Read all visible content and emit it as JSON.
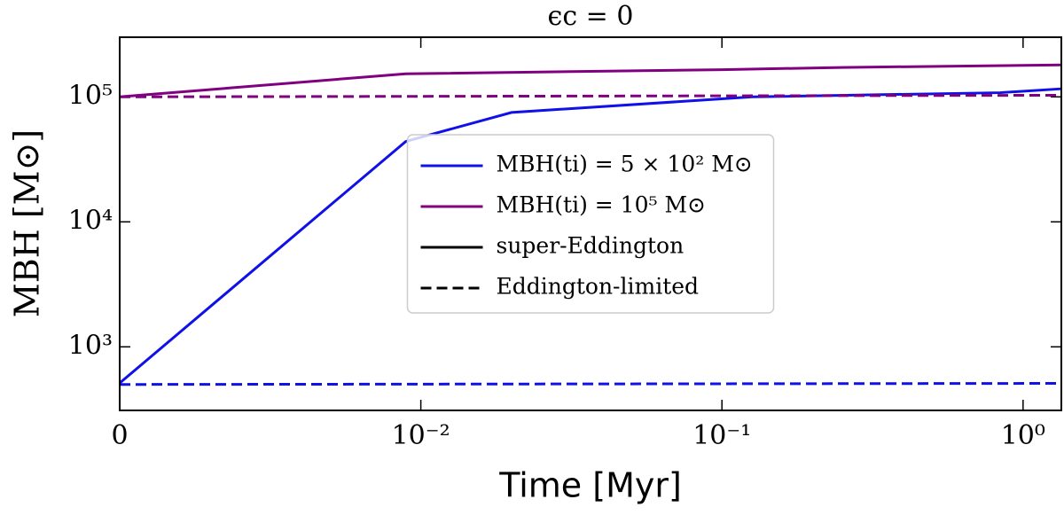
{
  "chart_data": {
    "type": "line",
    "title": "ϵc = 0",
    "x_label": "Time [Myr]",
    "y_label": "MBH [M⊙]",
    "xscale": "symlog",
    "linthresh": 0.01,
    "yscale": "log",
    "xlim": [
      0,
      1.34
    ],
    "ylim": [
      310,
      300000
    ],
    "xticks": [
      0,
      {
        "value": 0.01,
        "label": "10⁻²"
      },
      {
        "value": 0.1,
        "label": "10⁻¹"
      },
      {
        "value": 1,
        "label": "10⁰"
      }
    ],
    "yticks": [
      {
        "value": 1000,
        "label": "10³"
      },
      {
        "value": 10000,
        "label": "10⁴"
      },
      {
        "value": 100000,
        "label": "10⁵"
      }
    ],
    "legend": "center",
    "series": [
      {
        "name": "MBH(ti) = 5 × 10² M⊙",
        "color": "#1010e8",
        "dash": "solid",
        "x": [
          0,
          0.0095,
          0.02,
          0.126,
          0.84,
          1.34
        ],
        "values": [
          513,
          44000,
          75000,
          100000,
          108000,
          116000
        ]
      },
      {
        "name": "MBH(ti) = 10⁵ M⊙",
        "color": "#800080",
        "dash": "solid",
        "x": [
          0,
          0.0095,
          0.1,
          0.25,
          1.34
        ],
        "values": [
          100000,
          153000,
          165000,
          172000,
          180000
        ]
      },
      {
        "color": "#1010e8",
        "dash": "dashed",
        "x": [
          0,
          1.34
        ],
        "values": [
          500,
          510
        ]
      },
      {
        "color": "#800080",
        "dash": "dashed",
        "x": [
          0,
          1.34
        ],
        "values": [
          100000,
          103000
        ]
      }
    ],
    "legend_styles": [
      {
        "name": "super-Eddington",
        "color": "#000000",
        "dash": "solid"
      },
      {
        "name": "Eddington-limited",
        "color": "#000000",
        "dash": "dashed"
      }
    ]
  }
}
